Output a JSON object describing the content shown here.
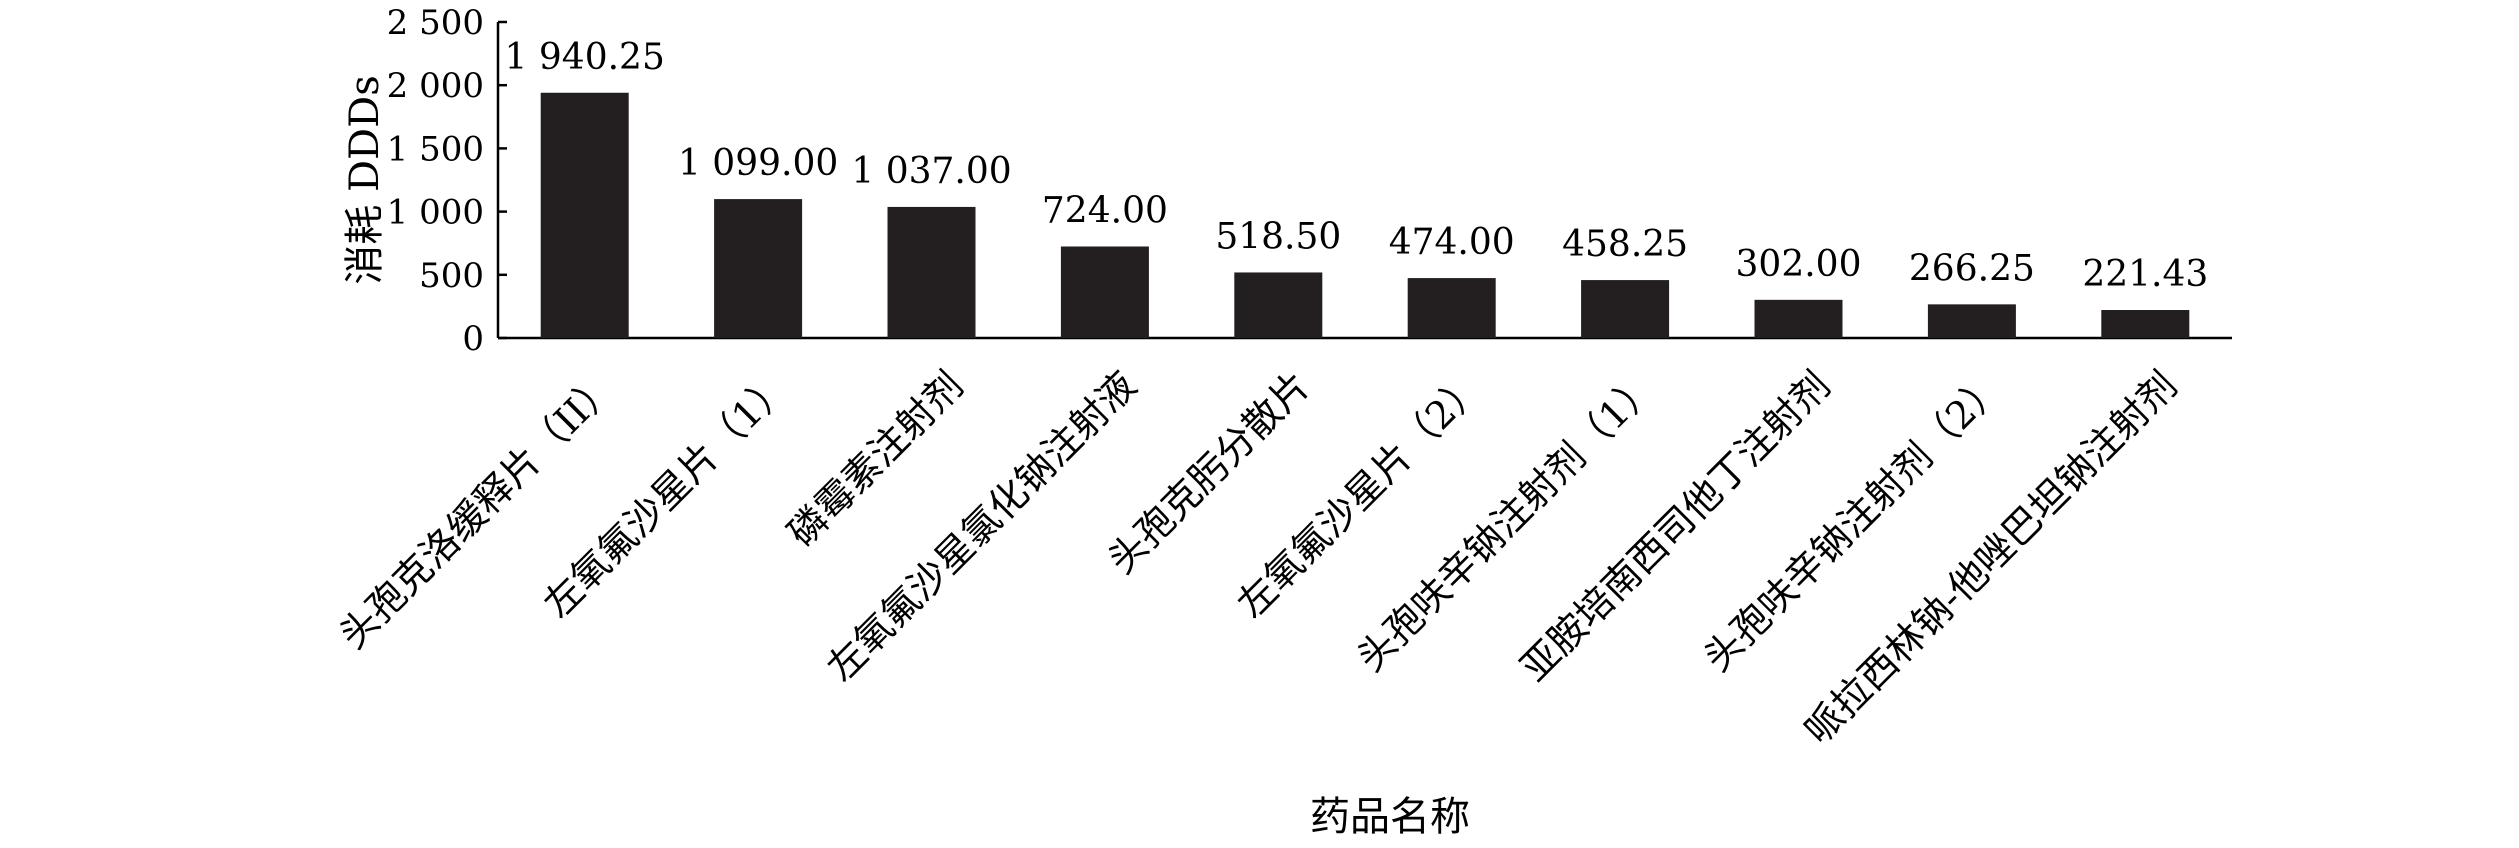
{
  "chart_data": {
    "type": "bar",
    "title": "",
    "xlabel": "药品名称",
    "ylabel": "消耗 DDDs",
    "ylim": [
      0,
      2500
    ],
    "yticks": [
      0,
      500,
      1000,
      1500,
      2000,
      2500
    ],
    "ytick_labels": [
      "0",
      "500",
      "1 000",
      "1 500",
      "2 000",
      "2 500"
    ],
    "grid": false,
    "legend": "none",
    "bar_color": "#231f20",
    "categories": [
      "头孢克洛缓释片（II）",
      "左氧氟沙星片（1）",
      "磷霉素注射剂",
      "左氧氟沙星氯化钠注射液",
      "头孢克肟分散片",
      "左氧氟沙星片（2）",
      "头孢呋辛钠注射剂（1）",
      "亚胺培南西司他丁注射剂",
      "头孢呋辛钠注射剂（2）",
      "哌拉西林钠-他唑巴坦钠注射剂"
    ],
    "values": [
      1940.25,
      1099.0,
      1037.0,
      724.0,
      518.5,
      474.0,
      458.25,
      302.0,
      266.25,
      221.43
    ],
    "value_labels": [
      "1 940.25",
      "1 099.00",
      "1 037.00",
      "724.00",
      "518.50",
      "474.00",
      "458.25",
      "302.00",
      "266.25",
      "221.43"
    ]
  }
}
